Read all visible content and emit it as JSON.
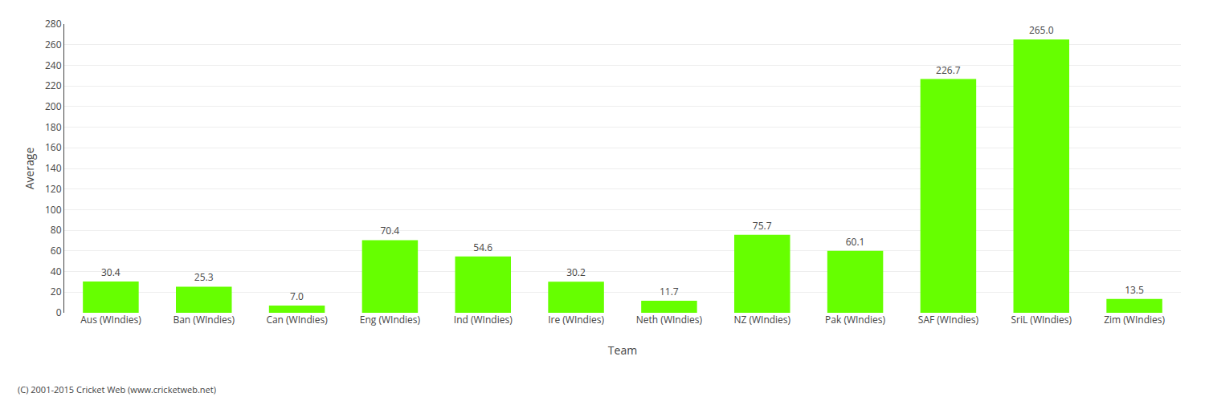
{
  "chart_data": {
    "type": "bar",
    "x_label": "Team",
    "y_label": "Average",
    "annotations": [
      "(C) 2001-2015 Cricket Web (www.cricketweb.net)"
    ],
    "categories": [
      "Aus (WIndies)",
      "Ban (WIndies)",
      "Can (WIndies)",
      "Eng (WIndies)",
      "Ind (WIndies)",
      "Ire (WIndies)",
      "Neth (WIndies)",
      "NZ (WIndies)",
      "Pak (WIndies)",
      "SAF (WIndies)",
      "SriL (WIndies)",
      "Zim (WIndies)"
    ],
    "values": [
      30.4,
      25.3,
      7.0,
      70.4,
      54.6,
      30.2,
      11.7,
      75.7,
      60.1,
      226.7,
      265.0,
      13.5
    ],
    "value_labels": [
      "30.4",
      "25.3",
      "7.0",
      "70.4",
      "54.6",
      "30.2",
      "11.7",
      "75.7",
      "60.1",
      "226.7",
      "265.0",
      "13.5"
    ],
    "data_labels": true,
    "color": "#66ff00",
    "ylim": [
      0,
      280
    ],
    "yticks": [
      0,
      20,
      40,
      60,
      80,
      100,
      120,
      140,
      160,
      180,
      200,
      220,
      240,
      260,
      280
    ],
    "grid": true
  }
}
